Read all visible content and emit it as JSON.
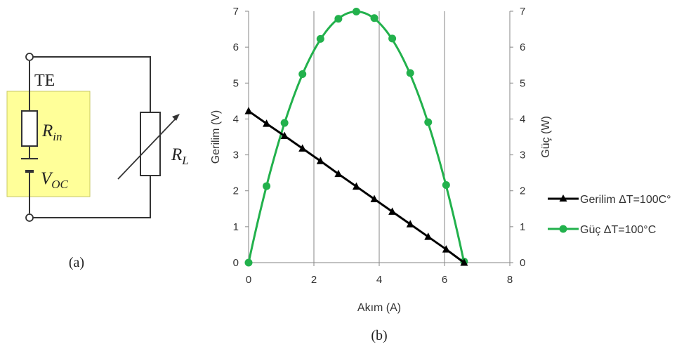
{
  "circuit": {
    "te_label": "TE",
    "rin_main": "R",
    "rin_sub": "in",
    "voc_main": "V",
    "voc_sub": "OC",
    "rl_main": "R",
    "rl_sub": "L",
    "caption": "(a)",
    "colors": {
      "te_box_fill": "#ffff99",
      "te_box_stroke": "#c8c864",
      "wire": "#333333"
    }
  },
  "chart_caption": "(b)",
  "chart_data": {
    "type": "line",
    "xlabel": "Akım (A)",
    "ylabel_left": "Gerilim (V)",
    "ylabel_right": "Güç (W)",
    "xlim": [
      0,
      8
    ],
    "ylim_left": [
      0,
      7
    ],
    "ylim_right": [
      0,
      7
    ],
    "x_ticks": [
      "0",
      "2",
      "4",
      "6",
      "8"
    ],
    "y_ticks": [
      "0",
      "1",
      "2",
      "3",
      "4",
      "5",
      "6",
      "7"
    ],
    "grid": "vertical",
    "legend_position": "right",
    "series": [
      {
        "name": "Gerilim ΔT=100C°",
        "marker": "triangle",
        "color": "#000000",
        "axis": "left",
        "x": [
          0,
          0.55,
          1.1,
          1.65,
          2.2,
          2.75,
          3.3,
          3.85,
          4.4,
          4.95,
          5.5,
          6.05,
          6.6
        ],
        "y": [
          4.22,
          3.87,
          3.53,
          3.18,
          2.83,
          2.47,
          2.12,
          1.77,
          1.42,
          1.07,
          0.72,
          0.37,
          0.0
        ]
      },
      {
        "name": "Güç ΔT=100°C",
        "marker": "circle",
        "color": "#22b14c",
        "axis": "right",
        "x": [
          0,
          0.55,
          1.1,
          1.65,
          2.2,
          2.75,
          3.3,
          3.85,
          4.4,
          4.95,
          5.5,
          6.05,
          6.6
        ],
        "y": [
          0.0,
          2.13,
          3.89,
          5.25,
          6.23,
          6.79,
          6.99,
          6.81,
          6.24,
          5.28,
          3.91,
          2.16,
          0.03
        ]
      }
    ]
  }
}
